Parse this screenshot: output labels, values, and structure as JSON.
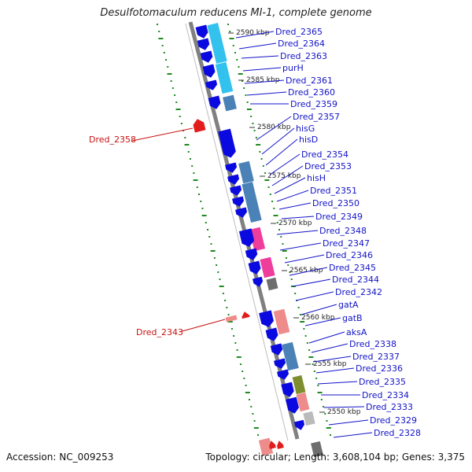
{
  "title": "Desulfotomaculum reducens MI-1, complete genome",
  "footer": {
    "accession": "Accession: NC_009253",
    "summary": "Topology: circular; Length: 3,608,104 bp; Genes: 3,375"
  },
  "colors": {
    "forward_cds": "#0a0ae0",
    "reverse_cds": "#e21b1b",
    "label_forward": "#1313c8",
    "label_reverse": "#c81313",
    "backbone": "#808080",
    "gc_dots": "#1f8a1f",
    "cyan": "#33c2ee",
    "steel": "#4a82b8",
    "pink": "#ee3d9a",
    "gray": "#6e6e6e",
    "salmon": "#ee8b8b",
    "olive": "#7e8d2e"
  },
  "scale_labels": [
    "2590 kbp",
    "2585 kbp",
    "2580 kbp",
    "2575 kbp",
    "2570 kbp",
    "2565 kbp",
    "2560 kbp",
    "2555 kbp",
    "2550 kbp"
  ],
  "forward_labels": [
    "Dred_2365",
    "Dred_2364",
    "Dred_2363",
    "purH",
    "Dred_2361",
    "Dred_2360",
    "Dred_2359",
    "Dred_2357",
    "hisG",
    "hisD",
    "Dred_2354",
    "Dred_2353",
    "hisH",
    "Dred_2351",
    "Dred_2350",
    "Dred_2349",
    "Dred_2348",
    "Dred_2347",
    "Dred_2346",
    "Dred_2345",
    "Dred_2344",
    "Dred_2342",
    "gatA",
    "gatB",
    "aksA",
    "Dred_2338",
    "Dred_2337",
    "Dred_2336",
    "Dred_2335",
    "Dred_2334",
    "Dred_2333",
    "Dred_2329",
    "Dred_2328"
  ],
  "reverse_labels": [
    "Dred_2358",
    "Dred_2343"
  ]
}
